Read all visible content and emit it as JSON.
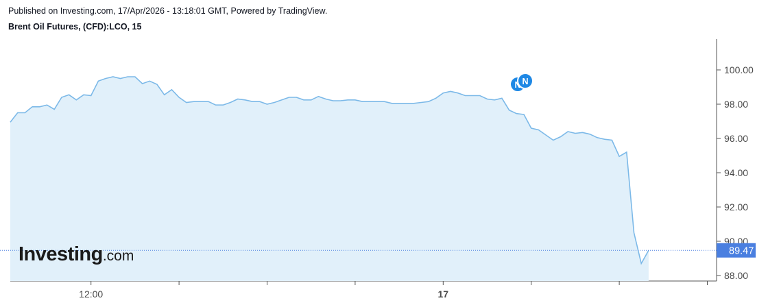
{
  "header": {
    "published": "Published on Investing.com, 17/Apr/2026 - 13:18:01 GMT, Powered by TradingView.",
    "title": "Brent Oil Futures, (CFD):LCO, 15"
  },
  "logo": {
    "main": "Investing",
    "suffix": ".com"
  },
  "colors": {
    "line": "#7cb9e8",
    "fill": "#e1f0fa",
    "price_tag": "#4a7fe0",
    "badge": "#1e88e5"
  },
  "chart_data": {
    "type": "area",
    "title": "Brent Oil Futures, (CFD):LCO, 15",
    "interval": "15",
    "xlabel": "",
    "ylabel": "",
    "ylim": [
      87.2,
      101.3
    ],
    "y_ticks": [
      "100.00",
      "98.00",
      "96.00",
      "94.00",
      "92.00",
      "90.00",
      "88.00"
    ],
    "x_ticks": [
      {
        "label": "12:00",
        "bold": false,
        "index": 11
      },
      {
        "label": "",
        "bold": false,
        "index": 23
      },
      {
        "label": "",
        "bold": false,
        "index": 35
      },
      {
        "label": "",
        "bold": false,
        "index": 47
      },
      {
        "label": "17",
        "bold": true,
        "index": 59
      },
      {
        "label": "",
        "bold": false,
        "index": 71
      },
      {
        "label": "",
        "bold": false,
        "index": 83
      },
      {
        "label": "",
        "bold": false,
        "index": 95
      }
    ],
    "bar_count": 100,
    "last_price": "89.47",
    "news_markers": [
      "N",
      "N"
    ],
    "series": [
      {
        "values": [
          96.95,
          97.5,
          97.5,
          97.85,
          97.85,
          97.95,
          97.7,
          98.4,
          98.55,
          98.25,
          98.55,
          98.5,
          99.35,
          99.5,
          99.6,
          99.5,
          99.6,
          99.6,
          99.2,
          99.35,
          99.15,
          98.55,
          98.85,
          98.4,
          98.1,
          98.15,
          98.15,
          98.15,
          97.95,
          97.95,
          98.1,
          98.3,
          98.25,
          98.15,
          98.15,
          98.0,
          98.1,
          98.25,
          98.4,
          98.4,
          98.25,
          98.25,
          98.45,
          98.3,
          98.2,
          98.2,
          98.25,
          98.25,
          98.15,
          98.15,
          98.15,
          98.15,
          98.05,
          98.05,
          98.05,
          98.05,
          98.1,
          98.15,
          98.35,
          98.65,
          98.75,
          98.65,
          98.5,
          98.5,
          98.5,
          98.3,
          98.25,
          98.35,
          97.65,
          97.45,
          97.4,
          96.6,
          96.5,
          96.2,
          95.9,
          96.1,
          96.4,
          96.3,
          96.35,
          96.25,
          96.05,
          95.95,
          95.9,
          94.95,
          95.2,
          90.5,
          88.7,
          89.47
        ]
      }
    ]
  }
}
